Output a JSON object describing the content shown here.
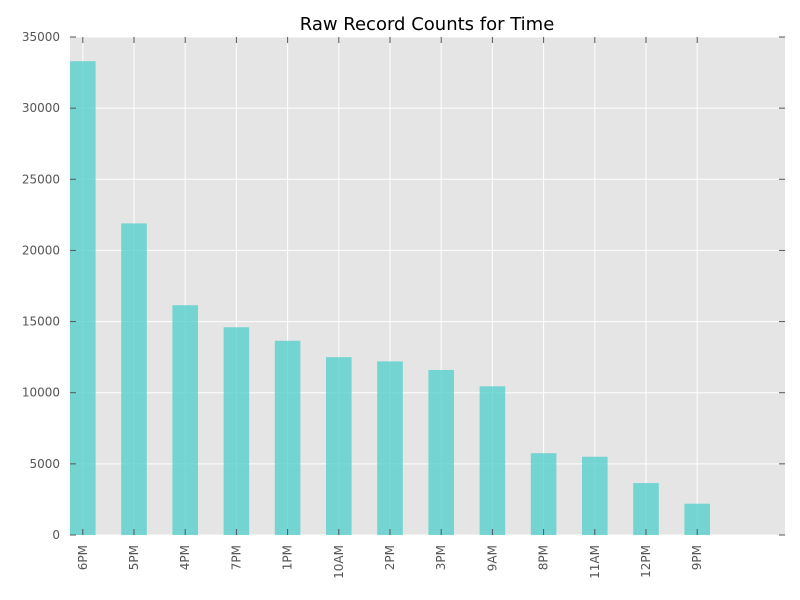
{
  "chart_data": {
    "type": "bar",
    "title": "Raw Record Counts for Time",
    "xlabel": "",
    "ylabel": "",
    "categories": [
      "6PM",
      "5PM",
      "4PM",
      "7PM",
      "1PM",
      "10AM",
      "2PM",
      "3PM",
      "9AM",
      "8PM",
      "11AM",
      "12PM",
      "9PM"
    ],
    "values": [
      33300,
      21900,
      16150,
      14600,
      13650,
      12500,
      12200,
      11600,
      10450,
      5750,
      5500,
      3650,
      2200
    ],
    "ylim": [
      0,
      35000
    ],
    "yticks": [
      0,
      5000,
      10000,
      15000,
      20000,
      25000,
      30000,
      35000
    ],
    "grid": true,
    "legend": "none",
    "colors": {
      "bar": "#4ecdcb",
      "plot_background": "#e5e5e5",
      "grid": "#ffffff"
    }
  }
}
